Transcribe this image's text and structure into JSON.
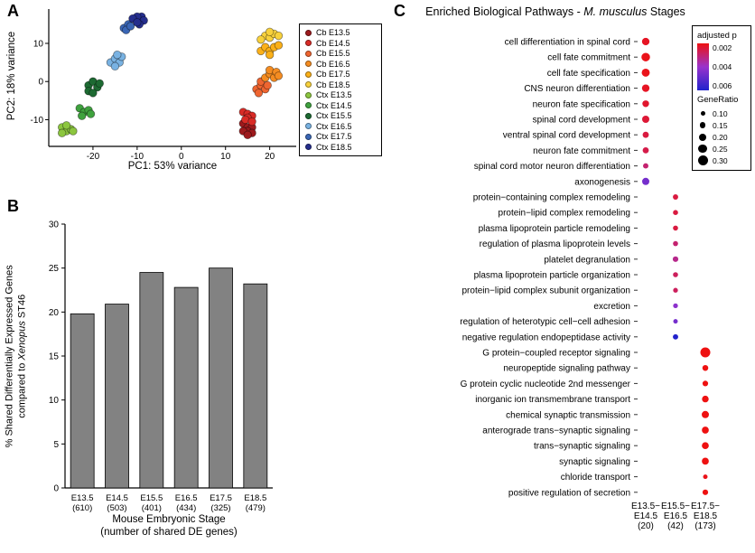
{
  "panelA": {
    "label": "A",
    "xlabel": "PC1: 53% variance",
    "ylabel": "PC2: 18% variance"
  },
  "panelB": {
    "label": "B",
    "ylabel_line1": "% Shared Differentially Expressed Genes",
    "ylabel_line2_pre": "compared to ",
    "ylabel_line2_italic": "Xenopus",
    "ylabel_line2_post": " ST46",
    "xlabel_line1": "Mouse Embryonic Stage",
    "xlabel_line2": "(number of shared DE genes)"
  },
  "panelC": {
    "label": "C",
    "title_pre": "Enriched Biological Pathways - ",
    "title_italic": "M. musculus",
    "title_post": " Stages",
    "legend": {
      "p_title": "adjusted p",
      "p_ticks": [
        "0.002",
        "0.004",
        "0.006"
      ],
      "ratio_title": "GeneRatio"
    }
  },
  "chart_data": [
    {
      "type": "scatter",
      "xlabel": "PC1: 53% variance",
      "ylabel": "PC2: 18% variance",
      "xlim": [
        -30,
        26
      ],
      "ylim": [
        -17,
        19
      ],
      "xticks": [
        -20,
        -10,
        0,
        10,
        20
      ],
      "yticks": [
        -10,
        0,
        10
      ],
      "legend_position": "right",
      "series": [
        {
          "name": "Cb E13.5",
          "color": "#9d1a1d",
          "points": [
            [
              14,
              -11
            ],
            [
              15,
              -12
            ],
            [
              16,
              -12
            ],
            [
              15,
              -13
            ],
            [
              14,
              -13
            ],
            [
              16,
              -13.5
            ],
            [
              15,
              -14
            ]
          ]
        },
        {
          "name": "Cb E14.5",
          "color": "#d92b26",
          "points": [
            [
              14,
              -8
            ],
            [
              15,
              -8.5
            ],
            [
              16,
              -9
            ],
            [
              15,
              -9.5
            ],
            [
              14.5,
              -10
            ],
            [
              16,
              -10.5
            ]
          ]
        },
        {
          "name": "Cb E15.5",
          "color": "#ef6530",
          "points": [
            [
              17,
              -2
            ],
            [
              18,
              -1
            ],
            [
              19,
              -2
            ],
            [
              18,
              0
            ],
            [
              17.5,
              -3
            ],
            [
              19.5,
              -1
            ]
          ]
        },
        {
          "name": "Cb E16.5",
          "color": "#f58c21",
          "points": [
            [
              19,
              1
            ],
            [
              20,
              2
            ],
            [
              21,
              1
            ],
            [
              20,
              3
            ],
            [
              21.5,
              2.5
            ],
            [
              22,
              1.5
            ]
          ]
        },
        {
          "name": "Cb E17.5",
          "color": "#fbb018",
          "points": [
            [
              18,
              8
            ],
            [
              19,
              9
            ],
            [
              20,
              8
            ],
            [
              21,
              9
            ],
            [
              20,
              7
            ],
            [
              22,
              9.5
            ]
          ]
        },
        {
          "name": "Cb E18.5",
          "color": "#f8d13c",
          "points": [
            [
              19,
              12
            ],
            [
              20,
              11.5
            ],
            [
              21,
              12.5
            ],
            [
              20,
              13
            ],
            [
              18,
              11
            ],
            [
              22,
              12
            ]
          ]
        },
        {
          "name": "Ctx E13.5",
          "color": "#8cc63f",
          "points": [
            [
              -27,
              -12
            ],
            [
              -26,
              -13
            ],
            [
              -25,
              -12.5
            ],
            [
              -27,
              -13.5
            ],
            [
              -26,
              -11.5
            ],
            [
              -24.5,
              -13
            ]
          ]
        },
        {
          "name": "Ctx E14.5",
          "color": "#3fa23e",
          "points": [
            [
              -23,
              -7
            ],
            [
              -22,
              -8
            ],
            [
              -21,
              -7.5
            ],
            [
              -22.5,
              -9
            ],
            [
              -20.5,
              -8.5
            ]
          ]
        },
        {
          "name": "Ctx E15.5",
          "color": "#1d6a32",
          "points": [
            [
              -21,
              -1
            ],
            [
              -20,
              0
            ],
            [
              -19,
              -1.5
            ],
            [
              -21,
              -2.5
            ],
            [
              -20,
              -3
            ],
            [
              -18.5,
              -0.5
            ]
          ]
        },
        {
          "name": "Ctx E16.5",
          "color": "#79b2e2",
          "points": [
            [
              -16,
              5
            ],
            [
              -15,
              6
            ],
            [
              -14,
              5
            ],
            [
              -15,
              4
            ],
            [
              -13.5,
              6.5
            ],
            [
              -14.5,
              7
            ]
          ]
        },
        {
          "name": "Ctx E17.5",
          "color": "#3a66b5",
          "points": [
            [
              -13,
              14
            ],
            [
              -12,
              15
            ],
            [
              -12.5,
              13.5
            ],
            [
              -11.5,
              14.5
            ]
          ]
        },
        {
          "name": "Ctx E18.5",
          "color": "#252e8d",
          "points": [
            [
              -10,
              16
            ],
            [
              -9,
              17
            ],
            [
              -10,
              17
            ],
            [
              -8.5,
              16
            ],
            [
              -9.5,
              15
            ],
            [
              -11,
              16.5
            ],
            [
              -10,
              15.5
            ]
          ]
        }
      ]
    },
    {
      "type": "bar",
      "categories": [
        "E13.5",
        "E14.5",
        "E15.5",
        "E16.5",
        "E17.5",
        "E18.5"
      ],
      "counts": [
        "(610)",
        "(503)",
        "(401)",
        "(434)",
        "(325)",
        "(479)"
      ],
      "values": [
        19.8,
        20.9,
        24.5,
        22.8,
        25.0,
        23.2
      ],
      "bar_color": "#828282",
      "ylim": [
        0,
        30
      ],
      "yticks": [
        0,
        5,
        10,
        15,
        20,
        25,
        30
      ],
      "ylabel": "% Shared Differentially Expressed Genes compared to Xenopus ST46",
      "xlabel": "Mouse Embryonic Stage (number of shared DE genes)"
    },
    {
      "type": "dotplot",
      "title": "Enriched Biological Pathways - M. musculus Stages",
      "groups": [
        [
          "E13.5−",
          "E14.5",
          "(20)"
        ],
        [
          "E15.5−",
          "E16.5",
          "(42)"
        ],
        [
          "E17.5−",
          "E18.5",
          "(173)"
        ]
      ],
      "color_scale": {
        "label": "adjusted p",
        "low": 0.002,
        "high": 0.006,
        "low_color": "#ee1111",
        "mid_color": "#9933cc",
        "high_color": "#2222cc"
      },
      "size_scale": {
        "label": "GeneRatio",
        "ticks": [
          0.1,
          0.15,
          0.2,
          0.25,
          0.3
        ]
      },
      "pathways": [
        {
          "label": "cell differentiation in spinal cord",
          "group": 0,
          "p": 0.0022,
          "ratio": 0.21
        },
        {
          "label": "cell fate commitment",
          "group": 0,
          "p": 0.0021,
          "ratio": 0.25
        },
        {
          "label": "cell fate specification",
          "group": 0,
          "p": 0.0021,
          "ratio": 0.23
        },
        {
          "label": "CNS neuron differentiation",
          "group": 0,
          "p": 0.0022,
          "ratio": 0.21
        },
        {
          "label": "neuron fate specification",
          "group": 0,
          "p": 0.0023,
          "ratio": 0.18
        },
        {
          "label": "spinal cord development",
          "group": 0,
          "p": 0.0024,
          "ratio": 0.2
        },
        {
          "label": "ventral spinal cord development",
          "group": 0,
          "p": 0.0025,
          "ratio": 0.16
        },
        {
          "label": "neuron fate commitment",
          "group": 0,
          "p": 0.0026,
          "ratio": 0.16
        },
        {
          "label": "spinal cord motor neuron differentiation",
          "group": 0,
          "p": 0.003,
          "ratio": 0.13
        },
        {
          "label": "axonogenesis",
          "group": 0,
          "p": 0.0046,
          "ratio": 0.2
        },
        {
          "label": "protein−containing complex remodeling",
          "group": 1,
          "p": 0.0025,
          "ratio": 0.13
        },
        {
          "label": "protein−lipid complex remodeling",
          "group": 1,
          "p": 0.0025,
          "ratio": 0.12
        },
        {
          "label": "plasma lipoprotein particle remodeling",
          "group": 1,
          "p": 0.0025,
          "ratio": 0.12
        },
        {
          "label": "regulation of plasma lipoprotein levels",
          "group": 1,
          "p": 0.003,
          "ratio": 0.12
        },
        {
          "label": "platelet degranulation",
          "group": 1,
          "p": 0.0033,
          "ratio": 0.14
        },
        {
          "label": "plasma lipoprotein particle organization",
          "group": 1,
          "p": 0.0028,
          "ratio": 0.12
        },
        {
          "label": "protein−lipid complex subunit organization",
          "group": 1,
          "p": 0.0028,
          "ratio": 0.11
        },
        {
          "label": "excretion",
          "group": 1,
          "p": 0.0042,
          "ratio": 0.11
        },
        {
          "label": "regulation of heterotypic cell−cell adhesion",
          "group": 1,
          "p": 0.0046,
          "ratio": 0.1
        },
        {
          "label": "negative regulation endopeptidase activity",
          "group": 1,
          "p": 0.006,
          "ratio": 0.13
        },
        {
          "label": "G protein−coupled receptor signaling",
          "group": 2,
          "p": 0.002,
          "ratio": 0.3
        },
        {
          "label": "neuropeptide signaling pathway",
          "group": 2,
          "p": 0.002,
          "ratio": 0.15
        },
        {
          "label": "G protein cyclic nucleotide 2nd messenger",
          "group": 2,
          "p": 0.002,
          "ratio": 0.14
        },
        {
          "label": "inorganic ion transmembrane transport",
          "group": 2,
          "p": 0.002,
          "ratio": 0.18
        },
        {
          "label": "chemical synaptic transmission",
          "group": 2,
          "p": 0.002,
          "ratio": 0.2
        },
        {
          "label": "anterograde trans−synaptic signaling",
          "group": 2,
          "p": 0.002,
          "ratio": 0.19
        },
        {
          "label": "trans−synaptic signaling",
          "group": 2,
          "p": 0.002,
          "ratio": 0.19
        },
        {
          "label": "synaptic signaling",
          "group": 2,
          "p": 0.002,
          "ratio": 0.19
        },
        {
          "label": "chloride transport",
          "group": 2,
          "p": 0.0021,
          "ratio": 0.1
        },
        {
          "label": "positive regulation of secretion",
          "group": 2,
          "p": 0.002,
          "ratio": 0.14
        }
      ]
    }
  ]
}
